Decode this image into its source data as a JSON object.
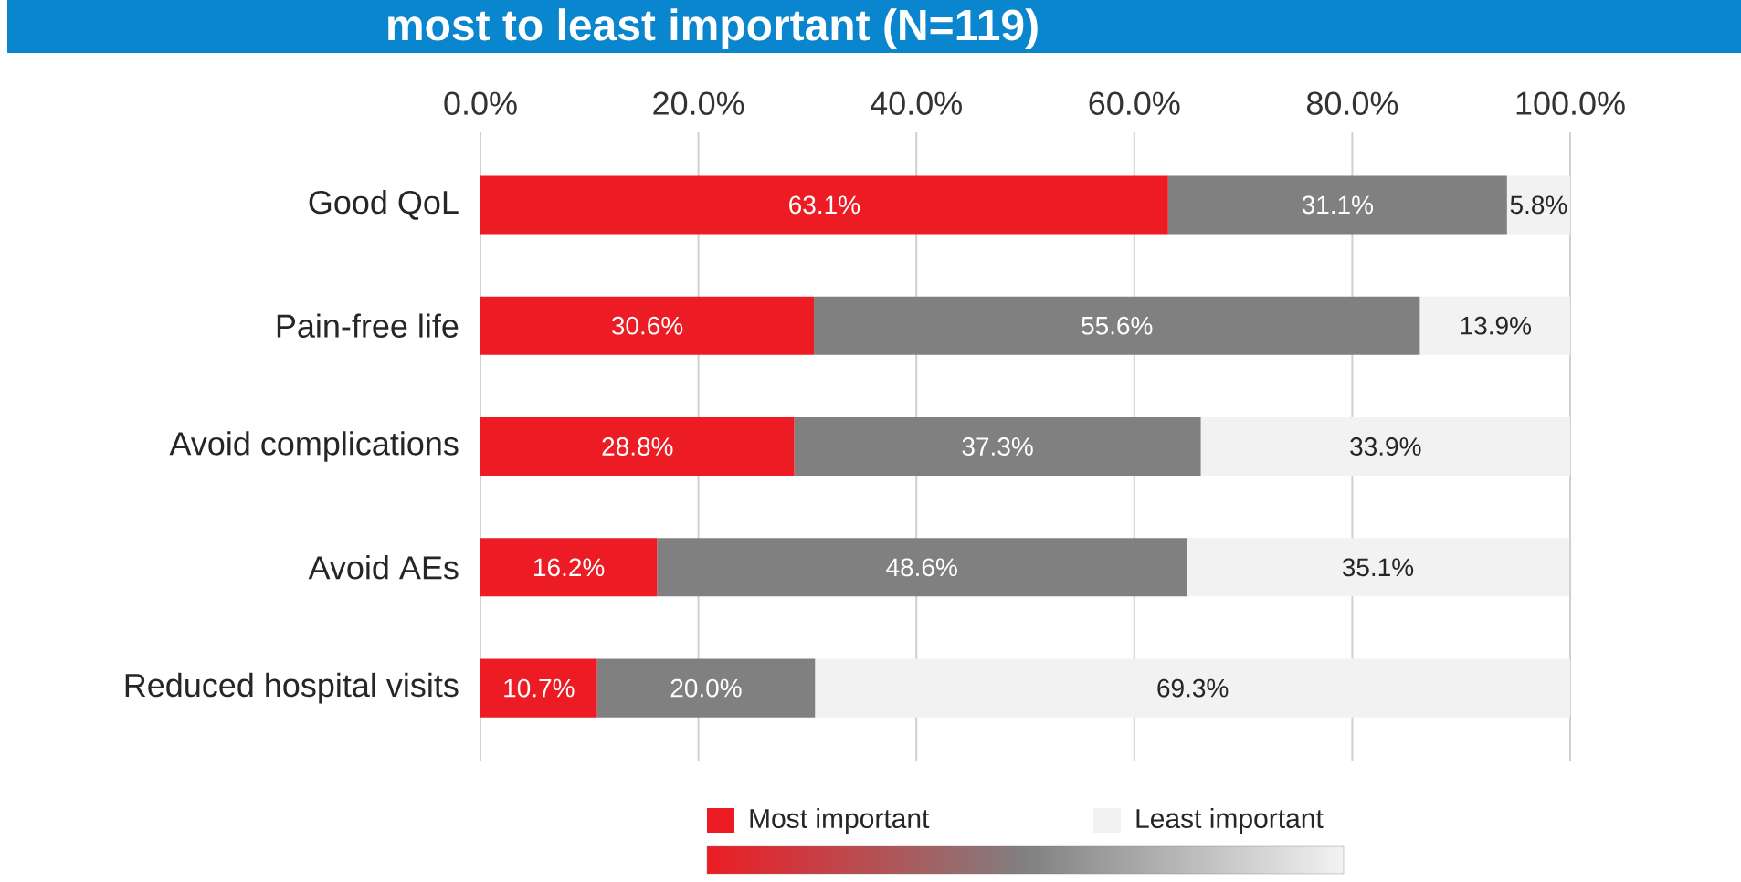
{
  "chart_data": {
    "type": "bar",
    "orientation": "horizontal",
    "stacked": true,
    "title": "most to least important (N=119)",
    "categories": [
      "Good QoL",
      "Pain-free life",
      "Avoid complications",
      "Avoid AEs",
      "Reduced hospital visits"
    ],
    "series": [
      {
        "name": "Most important",
        "color": "#ed1c24",
        "values": [
          63.1,
          30.6,
          28.8,
          16.2,
          10.7
        ],
        "value_labels": [
          "63.1%",
          "30.6%",
          "28.8%",
          "16.2%",
          "10.7%"
        ]
      },
      {
        "color": "#808080",
        "values": [
          31.1,
          55.6,
          37.3,
          48.6,
          20.0
        ],
        "value_labels": [
          "31.1%",
          "55.6%",
          "37.3%",
          "48.6%",
          "20.0%"
        ]
      },
      {
        "name": "Least important",
        "color": "#f2f2f2",
        "values": [
          5.8,
          13.9,
          33.9,
          35.1,
          69.3
        ],
        "value_labels": [
          "5.8%",
          "13.9%",
          "33.9%",
          "35.1%",
          "69.3%"
        ]
      }
    ],
    "xlim": [
      0,
      100
    ],
    "xticks": [
      {
        "value": 0,
        "label": "0.0%"
      },
      {
        "value": 20,
        "label": "20.0%"
      },
      {
        "value": 40,
        "label": "40.0%"
      },
      {
        "value": 60,
        "label": "60.0%"
      },
      {
        "value": 80,
        "label": "80.0%"
      },
      {
        "value": 100,
        "label": "100.0%"
      }
    ],
    "grid": "x",
    "legend": "bottom"
  }
}
